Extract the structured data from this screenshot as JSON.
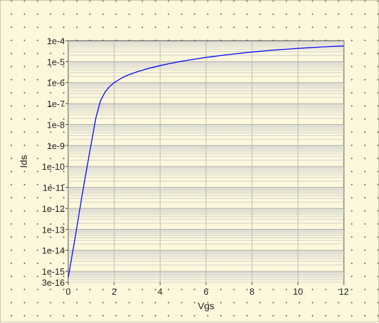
{
  "chart_data": {
    "type": "line",
    "xlabel": "Vgs",
    "ylabel": "Ids",
    "xlim": [
      0,
      12
    ],
    "ylim": [
      3e-16,
      0.0001
    ],
    "yscale": "log",
    "grid": true,
    "xticks": [
      {
        "value": 0,
        "label": "0"
      },
      {
        "value": 2,
        "label": "2"
      },
      {
        "value": 4,
        "label": "4"
      },
      {
        "value": 6,
        "label": "6"
      },
      {
        "value": 8,
        "label": "8"
      },
      {
        "value": 10,
        "label": "10"
      },
      {
        "value": 12,
        "label": "12"
      }
    ],
    "yticks": [
      {
        "value": 0.0001,
        "label": "1e-4"
      },
      {
        "value": 1e-05,
        "label": "1e-5"
      },
      {
        "value": 1e-06,
        "label": "1e-6"
      },
      {
        "value": 1e-07,
        "label": "1e-7"
      },
      {
        "value": 1e-08,
        "label": "1e-8"
      },
      {
        "value": 1e-09,
        "label": "1e-9"
      },
      {
        "value": 1e-10,
        "label": "1e-10"
      },
      {
        "value": 1e-11,
        "label": "1e-11"
      },
      {
        "value": 1e-12,
        "label": "1e-12"
      },
      {
        "value": 1e-13,
        "label": "1e-13"
      },
      {
        "value": 1e-14,
        "label": "1e-14"
      },
      {
        "value": 1e-15,
        "label": "1e-15"
      },
      {
        "value": 3e-16,
        "label": "3e-16"
      }
    ],
    "series": [
      {
        "color": "#0000ff",
        "x": [
          0,
          0.3,
          0.6,
          0.9,
          1.2,
          1.4,
          1.6,
          1.8,
          2.0,
          2.3,
          2.6,
          3.0,
          3.5,
          4.0,
          4.5,
          5.0,
          6.0,
          7.0,
          8.0,
          9.0,
          10.0,
          11.0,
          12.0
        ],
        "y": [
          5e-16,
          4e-14,
          4e-12,
          3e-10,
          2e-08,
          1.3e-07,
          3.5e-07,
          6.5e-07,
          1e-06,
          1.6e-06,
          2.3e-06,
          3.3e-06,
          4.8e-06,
          6.5e-06,
          8.5e-06,
          1.08e-05,
          1.6e-05,
          2.2e-05,
          2.9e-05,
          3.6e-05,
          4.3e-05,
          5e-05,
          5.6e-05
        ]
      }
    ]
  }
}
